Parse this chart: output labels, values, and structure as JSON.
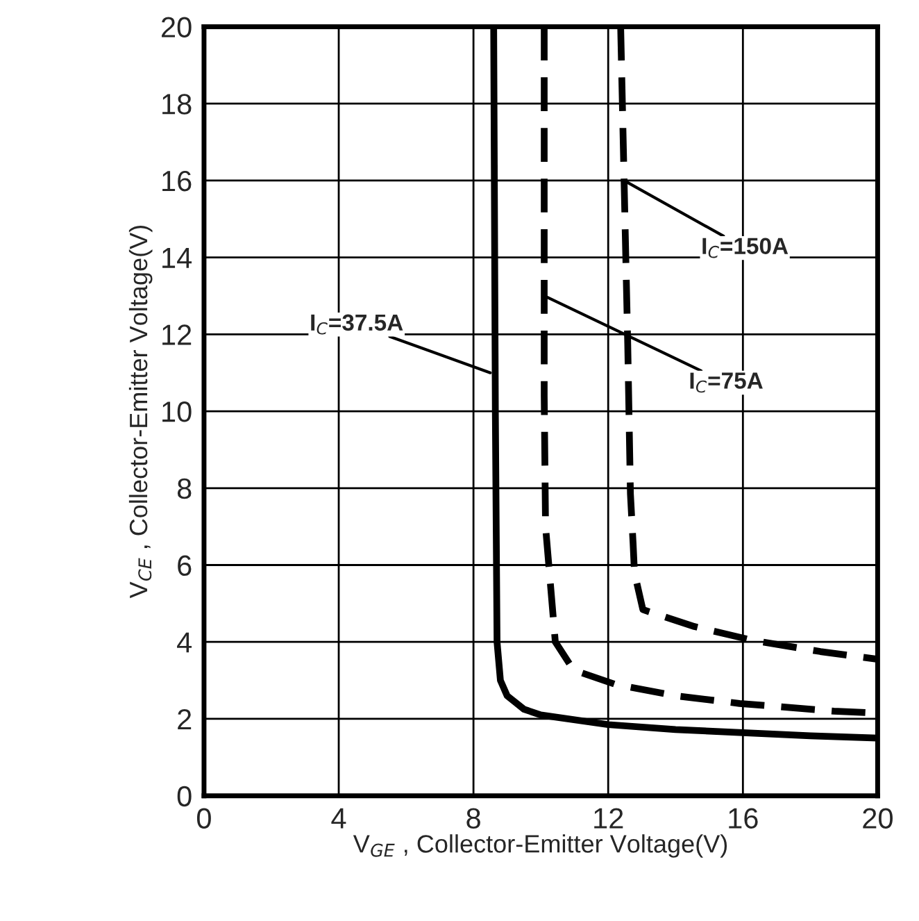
{
  "chart_data": {
    "type": "line",
    "xlabel": "V$_{GE}$ , Collector-Emitter Voltage(V)",
    "ylabel": "V$_{CE}$ , Collector-Emitter Voltage(V)",
    "xlim": [
      0,
      20
    ],
    "ylim": [
      0,
      20
    ],
    "xticks": [
      0,
      4,
      8,
      12,
      16,
      20
    ],
    "yticks": [
      0,
      2,
      4,
      6,
      8,
      10,
      12,
      14,
      16,
      18,
      20
    ],
    "grid": true,
    "legend": false,
    "marker": "none",
    "series": [
      {
        "color": "#000000",
        "line_style": "solid",
        "x": [
          8.6,
          8.65,
          8.7,
          8.8,
          9.0,
          9.5,
          10,
          12,
          14,
          16,
          18,
          20
        ],
        "values": [
          20,
          10,
          4,
          3,
          2.6,
          2.25,
          2.1,
          1.85,
          1.72,
          1.64,
          1.56,
          1.5
        ]
      },
      {
        "color": "#000000",
        "line_style": "dashed",
        "x": [
          10.1,
          10.1,
          10.14,
          10.43,
          10.97,
          12.2,
          14,
          15.9,
          18.7,
          20
        ],
        "values": [
          20,
          10.4,
          7.0,
          4.0,
          3.27,
          2.9,
          2.6,
          2.4,
          2.2,
          2.15
        ]
      },
      {
        "color": "#000000",
        "line_style": "dashed",
        "x": [
          12.37,
          12.58,
          12.66,
          12.74,
          12.78,
          13.03,
          14.56,
          16.3,
          18.3,
          20
        ],
        "values": [
          20,
          11.75,
          7.85,
          6.55,
          5.8,
          4.84,
          4.4,
          4.04,
          3.75,
          3.55
        ]
      }
    ],
    "annotations": [
      {
        "text": "I$_{C}$=37.5A",
        "x": 8.5,
        "y": 11.0
      },
      {
        "text": "I$_{C}$=75A",
        "x": 10.1,
        "y": 13.0
      },
      {
        "text": "I$_{C}$=150A",
        "x": 12.47,
        "y": 16.0
      }
    ]
  }
}
